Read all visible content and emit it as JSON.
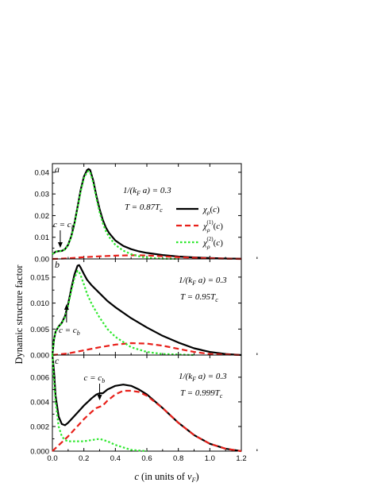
{
  "chart_data": {
    "type": "line",
    "xlabel": "c (in units of v_F)",
    "ylabel": "Dynamic structure factor",
    "xlim": [
      0.0,
      1.2
    ],
    "xticks": [
      "0.0",
      "0.2",
      "0.4",
      "0.6",
      "0.8",
      "1.0",
      "1.2"
    ],
    "legend": {
      "placement": "top-right of panel a",
      "entries": [
        {
          "label": "χ_ρ(c)",
          "color": "#000000",
          "dash": "solid"
        },
        {
          "label": "χ_ρ^(1)(c)",
          "color": "#e8201a",
          "dash": "dashed"
        },
        {
          "label": "χ_ρ^(2)(c)",
          "color": "#2ee82e",
          "dash": "dotted"
        }
      ]
    },
    "panels": [
      {
        "label": "a",
        "param1": "1/(k_F a) = 0.3",
        "param2": "T = 0.87T_c",
        "marker": "c = c_b",
        "marker_x": 0.05,
        "ylim": [
          0.0,
          0.044
        ],
        "yticks": [
          0.0,
          0.01,
          0.02,
          0.03,
          0.04
        ],
        "ytick_labels": [
          "0.00",
          "0.01",
          "0.02",
          "0.03",
          "0.04"
        ],
        "series": [
          {
            "name": "χ_ρ(c)",
            "x": [
              0,
              0.02,
              0.04,
              0.06,
              0.08,
              0.1,
              0.12,
              0.14,
              0.16,
              0.18,
              0.2,
              0.22,
              0.23,
              0.24,
              0.26,
              0.28,
              0.3,
              0.32,
              0.34,
              0.36,
              0.4,
              0.45,
              0.5,
              0.55,
              0.6,
              0.7,
              0.8,
              0.9,
              1.0,
              1.1,
              1.2
            ],
            "y": [
              0.0022,
              0.0033,
              0.0036,
              0.0037,
              0.0045,
              0.0065,
              0.0105,
              0.0165,
              0.024,
              0.032,
              0.038,
              0.041,
              0.0415,
              0.041,
              0.036,
              0.029,
              0.023,
              0.018,
              0.0145,
              0.012,
              0.0085,
              0.006,
              0.0045,
              0.0035,
              0.0028,
              0.0018,
              0.0011,
              0.0007,
              0.0004,
              0.0002,
              0.0001
            ]
          },
          {
            "name": "χ_ρ^(1)(c)",
            "x": [
              0,
              0.05,
              0.1,
              0.2,
              0.3,
              0.4,
              0.5,
              0.55,
              0.6,
              0.7,
              0.8,
              0.9,
              1.0,
              1.1,
              1.2
            ],
            "y": [
              0.0,
              0.0001,
              0.0003,
              0.0008,
              0.0012,
              0.0015,
              0.0017,
              0.0017,
              0.0016,
              0.0012,
              0.0008,
              0.0005,
              0.0003,
              0.0001,
              0.0
            ],
            "dashed": true
          },
          {
            "name": "χ_ρ^(2)(c)",
            "x": [
              0,
              0.02,
              0.04,
              0.06,
              0.08,
              0.1,
              0.12,
              0.14,
              0.16,
              0.18,
              0.2,
              0.22,
              0.23,
              0.24,
              0.26,
              0.28,
              0.3,
              0.32,
              0.34,
              0.36,
              0.4,
              0.45,
              0.5,
              0.55,
              0.6,
              0.7,
              0.8
            ],
            "y": [
              0.0022,
              0.0033,
              0.0036,
              0.0036,
              0.0044,
              0.0063,
              0.0102,
              0.016,
              0.0235,
              0.0312,
              0.0372,
              0.0402,
              0.0406,
              0.04,
              0.0348,
              0.0278,
              0.0215,
              0.0165,
              0.0128,
              0.0102,
              0.0065,
              0.0038,
              0.0022,
              0.0012,
              0.0006,
              0.0001,
              0.0
            ]
          }
        ]
      },
      {
        "label": "b",
        "param1": "1/(k_F a) = 0.3",
        "param2": "T = 0.95T_c",
        "marker": "c = c_b",
        "marker_x": 0.09,
        "ylim": [
          0.0,
          0.0185
        ],
        "yticks": [
          0.0,
          0.005,
          0.01,
          0.015
        ],
        "ytick_labels": [
          "0.000",
          "0.005",
          "0.010",
          "0.015"
        ],
        "series": [
          {
            "name": "χ_ρ(c)",
            "x": [
              0,
              0.01,
              0.02,
              0.04,
              0.06,
              0.08,
              0.1,
              0.12,
              0.14,
              0.16,
              0.17,
              0.18,
              0.2,
              0.22,
              0.25,
              0.3,
              0.35,
              0.4,
              0.5,
              0.6,
              0.7,
              0.8,
              0.9,
              1.0,
              1.1,
              1.2
            ],
            "y": [
              0.0,
              0.003,
              0.0045,
              0.0055,
              0.0062,
              0.0075,
              0.0098,
              0.0128,
              0.0155,
              0.0172,
              0.0173,
              0.0168,
              0.0156,
              0.0145,
              0.0134,
              0.0119,
              0.0104,
              0.0092,
              0.0071,
              0.0053,
              0.0037,
              0.0024,
              0.0013,
              0.0006,
              0.0002,
              0.0
            ]
          },
          {
            "name": "χ_ρ^(1)(c)",
            "x": [
              0,
              0.1,
              0.2,
              0.3,
              0.4,
              0.5,
              0.6,
              0.7,
              0.8,
              0.9,
              1.0,
              1.1,
              1.2
            ],
            "y": [
              0.0,
              0.0003,
              0.0009,
              0.0015,
              0.002,
              0.0023,
              0.0022,
              0.0018,
              0.0012,
              0.0006,
              0.0002,
              0.0001,
              0.0
            ],
            "dashed": true
          },
          {
            "name": "χ_ρ^(2)(c)",
            "x": [
              0,
              0.01,
              0.02,
              0.04,
              0.06,
              0.08,
              0.1,
              0.12,
              0.14,
              0.16,
              0.17,
              0.18,
              0.2,
              0.22,
              0.25,
              0.3,
              0.35,
              0.4,
              0.5,
              0.6,
              0.7,
              0.8,
              0.9
            ],
            "y": [
              0.0,
              0.003,
              0.0045,
              0.0055,
              0.0061,
              0.0073,
              0.0095,
              0.0123,
              0.0148,
              0.0162,
              0.016,
              0.0153,
              0.0136,
              0.0118,
              0.0098,
              0.0072,
              0.005,
              0.0035,
              0.0015,
              0.0006,
              0.0002,
              0.0001,
              0.0
            ]
          }
        ]
      },
      {
        "label": "c",
        "param1": "1/(k_F a) = 0.3",
        "param2": "T = 0.999T_c",
        "marker": "c = c_b",
        "marker_x": 0.3,
        "ylim": [
          0.0,
          0.0078
        ],
        "yticks": [
          0.0,
          0.002,
          0.004,
          0.006
        ],
        "ytick_labels": [
          "0.000",
          "0.002",
          "0.004",
          "0.006"
        ],
        "series": [
          {
            "name": "χ_ρ(c)",
            "x": [
              0,
              0.01,
              0.02,
              0.04,
              0.06,
              0.08,
              0.1,
              0.15,
              0.2,
              0.25,
              0.28,
              0.3,
              0.32,
              0.35,
              0.4,
              0.45,
              0.5,
              0.55,
              0.6,
              0.7,
              0.8,
              0.9,
              1.0,
              1.1,
              1.2
            ],
            "y": [
              0.0078,
              0.0065,
              0.0045,
              0.0028,
              0.0022,
              0.0021,
              0.0023,
              0.003,
              0.0037,
              0.0043,
              0.0046,
              0.0047,
              0.0047,
              0.005,
              0.0053,
              0.0054,
              0.0053,
              0.005,
              0.0046,
              0.0035,
              0.0023,
              0.0013,
              0.0006,
              0.0002,
              0.0
            ]
          },
          {
            "name": "χ_ρ^(1)(c)",
            "x": [
              0,
              0.05,
              0.1,
              0.15,
              0.2,
              0.25,
              0.28,
              0.3,
              0.32,
              0.35,
              0.4,
              0.45,
              0.5,
              0.55,
              0.6,
              0.7,
              0.8,
              0.9,
              1.0,
              1.1,
              1.2
            ],
            "y": [
              0.0,
              0.0006,
              0.0012,
              0.0019,
              0.0026,
              0.0032,
              0.0035,
              0.0036,
              0.0037,
              0.0041,
              0.0046,
              0.0049,
              0.0049,
              0.0048,
              0.0045,
              0.0035,
              0.0023,
              0.0013,
              0.0006,
              0.0002,
              0.0
            ],
            "dashed": true
          },
          {
            "name": "χ_ρ^(2)(c)",
            "x": [
              0,
              0.01,
              0.02,
              0.04,
              0.06,
              0.08,
              0.1,
              0.15,
              0.2,
              0.25,
              0.3,
              0.35,
              0.4,
              0.5,
              0.6
            ],
            "y": [
              0.0078,
              0.0058,
              0.004,
              0.002,
              0.0012,
              0.0009,
              0.0008,
              0.0008,
              0.0008,
              0.0009,
              0.001,
              0.0008,
              0.0005,
              0.0001,
              0.0
            ]
          }
        ]
      }
    ]
  }
}
